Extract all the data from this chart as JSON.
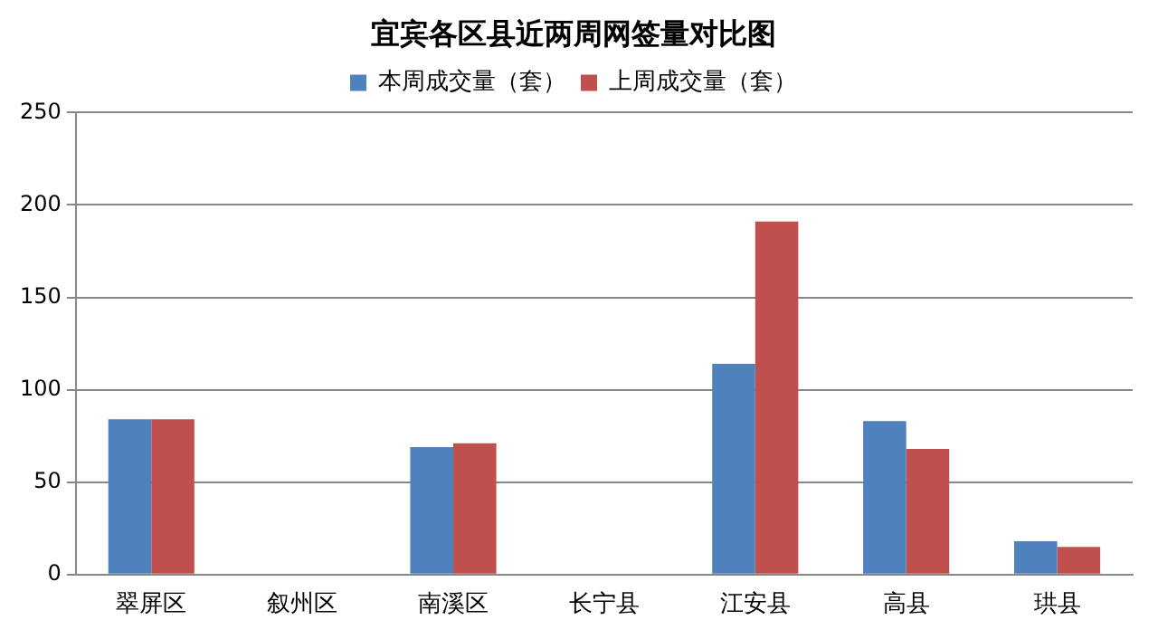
{
  "chart_data": {
    "type": "bar",
    "title": "宜宾各区县近两周网签量对比图",
    "categories": [
      "翠屏区",
      "叙州区",
      "南溪区",
      "长宁县",
      "江安县",
      "高县",
      "珙县"
    ],
    "series": [
      {
        "name": "本周成交量（套）",
        "color": "#4f81bd",
        "values": [
          84,
          0,
          69,
          0,
          114,
          83,
          18
        ]
      },
      {
        "name": "上周成交量（套）",
        "color": "#c0504d",
        "values": [
          84,
          0,
          71,
          0,
          191,
          68,
          15
        ]
      }
    ],
    "ylim": [
      0,
      250
    ],
    "yticks": [
      0,
      50,
      100,
      150,
      200,
      250
    ],
    "grid": "y",
    "legend": "top"
  }
}
